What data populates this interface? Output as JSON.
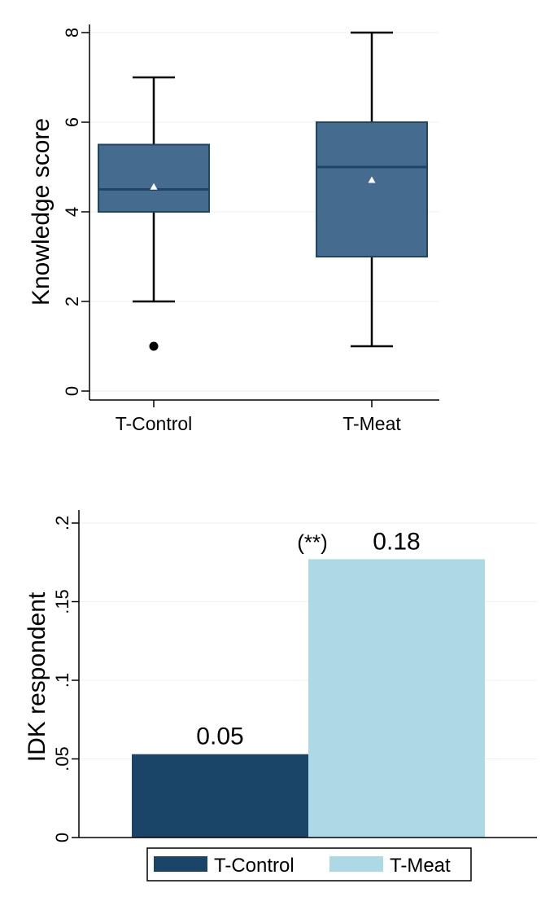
{
  "chart_data": [
    {
      "type": "box",
      "ylabel": "Knowledge score",
      "xlabel": "",
      "ylim": [
        0,
        8
      ],
      "yticks": [
        "0",
        "2",
        "4",
        "6",
        "8"
      ],
      "yticks_values": [
        0,
        2,
        4,
        6,
        8
      ],
      "grid": true,
      "categories": [
        "T-Control",
        "T-Meat"
      ],
      "boxes": [
        {
          "category": "T-Control",
          "whisker_low": 2,
          "q1": 4,
          "median": 4.5,
          "q3": 5.5,
          "whisker_high": 7,
          "mean": 4.55,
          "outliers": [
            1
          ]
        },
        {
          "category": "T-Meat",
          "whisker_low": 1,
          "q1": 3,
          "median": 5,
          "q3": 6,
          "whisker_high": 8,
          "mean": 4.7,
          "outliers": []
        }
      ],
      "box_color": "#456b8e",
      "median_color": "#1e4466"
    },
    {
      "type": "bar",
      "ylabel": "IDK respondent",
      "xlabel": "",
      "ylim": [
        0,
        0.2
      ],
      "yticks": [
        "0",
        ".05",
        ".1",
        ".15",
        ".2"
      ],
      "yticks_values": [
        0,
        0.05,
        0.1,
        0.15,
        0.2
      ],
      "grid": true,
      "legend_position": "bottom",
      "series": [
        {
          "name": "T-Control",
          "value": 0.053,
          "label": "0.05",
          "color": "#1b4469"
        },
        {
          "name": "T-Meat",
          "value": 0.177,
          "label": "0.18",
          "color": "#add8e6",
          "annotation": "(**)"
        }
      ]
    }
  ]
}
